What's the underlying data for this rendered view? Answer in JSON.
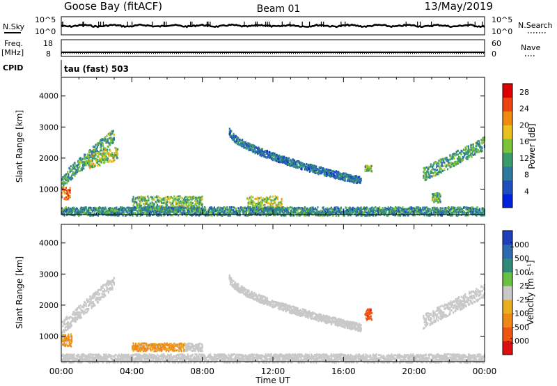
{
  "header": {
    "station": "Goose Bay (fitACF)",
    "beam": "Beam 01",
    "date": "13/May/2019"
  },
  "status_panels": {
    "nsky": {
      "label": "N.Sky",
      "ticks": [
        "10^5",
        "10^0"
      ]
    },
    "nsearch": {
      "label": "N.Search",
      "ticks": [
        "10^5",
        "10^0"
      ]
    },
    "freq": {
      "label_line1": "Freq.",
      "label_line2": "[MHz]",
      "ticks": [
        "18",
        "8"
      ]
    },
    "nave": {
      "label": "Nave",
      "ticks": [
        "60",
        "0"
      ]
    },
    "cpid": {
      "label": "CPID",
      "value": "tau (fast) 503"
    }
  },
  "colors": {
    "power": [
      "#0022dd",
      "#1f4fbf",
      "#2e7a9e",
      "#3a9a6a",
      "#7bc43a",
      "#e8c020",
      "#f08a10",
      "#ee4410",
      "#dd0000"
    ],
    "velocity": [
      "#1f3fb8",
      "#2e6ab0",
      "#2f8a78",
      "#6ac040",
      "#c8c8c8",
      "#e8b020",
      "#f08818",
      "#ee5510",
      "#dd1010"
    ]
  },
  "chart_data": [
    {
      "type": "heatmap",
      "panel": "power",
      "ylabel": "Slant Range [km]",
      "xlabel": "Time UT",
      "x_ticks": [
        "00:00",
        "04:00",
        "08:00",
        "12:00",
        "16:00",
        "20:00",
        "00:00"
      ],
      "x_range_hours": [
        0,
        24
      ],
      "y_ticks": [
        1000,
        2000,
        3000,
        4000
      ],
      "ylim": [
        180,
        4600
      ],
      "colorbar": {
        "label": "Power [dB]",
        "ticks": [
          "4",
          "8",
          "12",
          "16",
          "20",
          "24",
          "28"
        ],
        "range": [
          0,
          30
        ]
      },
      "regions": [
        {
          "t0": 0.0,
          "t1": 3.0,
          "r0": 1300,
          "r1": 2800,
          "shape": "rising",
          "value": 12
        },
        {
          "t0": 0.0,
          "t1": 0.5,
          "r0": 700,
          "r1": 1100,
          "shape": "flat",
          "value": 22
        },
        {
          "t0": 1.5,
          "t1": 3.2,
          "r0": 1900,
          "r1": 2200,
          "shape": "rising",
          "value": 16
        },
        {
          "t0": 4.0,
          "t1": 8.0,
          "r0": 350,
          "r1": 800,
          "shape": "flat",
          "value": 14
        },
        {
          "t0": 9.5,
          "t1": 17.0,
          "r0": 1300,
          "r1": 2900,
          "shape": "falling",
          "value": 8
        },
        {
          "t0": 10.5,
          "t1": 12.5,
          "r0": 300,
          "r1": 800,
          "shape": "flat",
          "value": 16
        },
        {
          "t0": 17.2,
          "t1": 17.6,
          "r0": 1600,
          "r1": 1800,
          "shape": "flat",
          "value": 14
        },
        {
          "t0": 20.5,
          "t1": 24.0,
          "r0": 1500,
          "r1": 2500,
          "shape": "rising",
          "value": 12
        },
        {
          "t0": 21.0,
          "t1": 21.5,
          "r0": 600,
          "r1": 900,
          "shape": "flat",
          "value": 14
        },
        {
          "t0": 0.0,
          "t1": 24.0,
          "r0": 180,
          "r1": 450,
          "shape": "flat",
          "value": 10
        }
      ]
    },
    {
      "type": "heatmap",
      "panel": "velocity",
      "ylabel": "Slant Range [km]",
      "xlabel": "Time UT",
      "x_ticks": [
        "00:00",
        "04:00",
        "08:00",
        "12:00",
        "16:00",
        "20:00",
        "00:00"
      ],
      "x_range_hours": [
        0,
        24
      ],
      "y_ticks": [
        1000,
        2000,
        3000,
        4000
      ],
      "ylim": [
        180,
        4600
      ],
      "colorbar": {
        "label": "Velocity [m s⁻¹]",
        "ticks": [
          "1000",
          "500",
          "100",
          "25",
          "-25",
          "-100",
          "-500",
          "-1000"
        ],
        "range": [
          -1000,
          1000
        ]
      },
      "regions": [
        {
          "t0": 0.0,
          "t1": 3.0,
          "r0": 1300,
          "r1": 2800,
          "shape": "rising",
          "value": 0
        },
        {
          "t0": 0.0,
          "t1": 0.6,
          "r0": 700,
          "r1": 1100,
          "shape": "flat",
          "value": -150
        },
        {
          "t0": 4.0,
          "t1": 7.0,
          "r0": 550,
          "r1": 800,
          "shape": "flat",
          "value": -150
        },
        {
          "t0": 7.0,
          "t1": 8.0,
          "r0": 550,
          "r1": 800,
          "shape": "flat",
          "value": 0
        },
        {
          "t0": 9.5,
          "t1": 17.0,
          "r0": 1300,
          "r1": 2900,
          "shape": "falling",
          "value": 0
        },
        {
          "t0": 17.2,
          "t1": 17.6,
          "r0": 1550,
          "r1": 1900,
          "shape": "flat",
          "value": -900
        },
        {
          "t0": 20.5,
          "t1": 24.0,
          "r0": 1500,
          "r1": 2500,
          "shape": "rising",
          "value": 0
        },
        {
          "t0": 0.0,
          "t1": 24.0,
          "r0": 180,
          "r1": 450,
          "shape": "flat",
          "value": 0
        }
      ]
    }
  ]
}
